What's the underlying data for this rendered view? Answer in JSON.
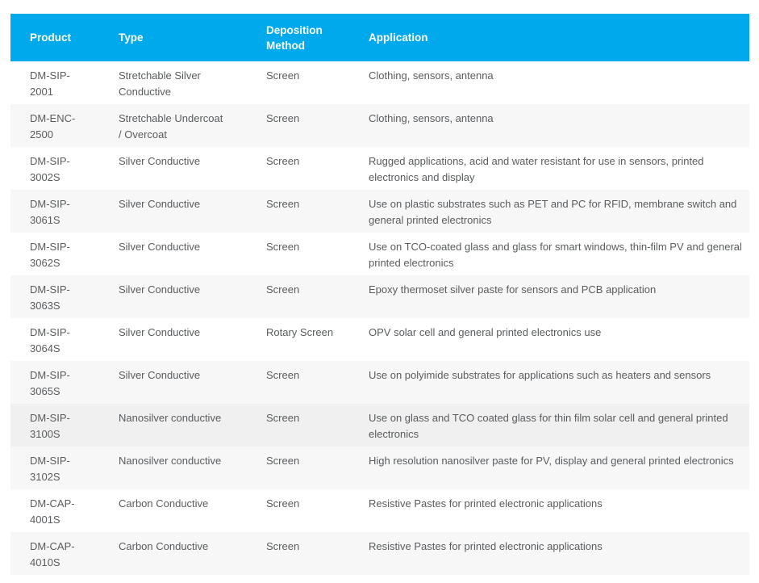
{
  "table": {
    "colors": {
      "header_bg": "#00a9ec",
      "header_text": "#ffffff",
      "row_bg": "#ffffff",
      "row_alt_bg": "#f7f7f8",
      "row_highlight_bg": "#f0f0f1",
      "body_text": "#595c5e"
    },
    "columns": [
      {
        "key": "product",
        "label": "Product"
      },
      {
        "key": "type",
        "label": "Type"
      },
      {
        "key": "deposition",
        "label": "Deposition Method"
      },
      {
        "key": "application",
        "label": "Application"
      }
    ],
    "rows": [
      {
        "product": "DM-SIP-2001",
        "type": "Stretchable Silver Conductive",
        "deposition": "Screen",
        "application": "Clothing, sensors, antenna",
        "highlighted": false
      },
      {
        "product": "DM-ENC-2500",
        "type": "Stretchable Undercoat / Overcoat",
        "deposition": "Screen",
        "application": "Clothing, sensors, antenna",
        "highlighted": false
      },
      {
        "product": "DM-SIP-3002S",
        "type": "Silver Conductive",
        "deposition": "Screen",
        "application": "Rugged applications, acid and water resistant for use in sensors, printed electronics and display",
        "highlighted": false
      },
      {
        "product": "DM-SIP-3061S",
        "type": "Silver Conductive",
        "deposition": "Screen",
        "application": "Use on plastic substrates such as PET and PC for RFID, membrane switch and general printed electronics",
        "highlighted": false
      },
      {
        "product": "DM-SIP-3062S",
        "type": "Silver Conductive",
        "deposition": "Screen",
        "application": "Use on TCO-coated glass and glass for smart windows, thin-film PV and general printed electronics",
        "highlighted": false
      },
      {
        "product": "DM-SIP-3063S",
        "type": "Silver Conductive",
        "deposition": "Screen",
        "application": "Epoxy thermoset silver paste for sensors and PCB application",
        "highlighted": false
      },
      {
        "product": "DM-SIP-3064S",
        "type": "Silver Conductive",
        "deposition": "Rotary Screen",
        "application": "OPV solar cell and general printed electronics use",
        "highlighted": false
      },
      {
        "product": "DM-SIP-3065S",
        "type": "Silver Conductive",
        "deposition": "Screen",
        "application": "Use on polyimide substrates for applications such as heaters and sensors",
        "highlighted": false
      },
      {
        "product": "DM-SIP-3100S",
        "type": "Nanosilver conductive",
        "deposition": "Screen",
        "application": "Use on glass and TCO coated glass for thin film solar cell and general printed electronics",
        "highlighted": true
      },
      {
        "product": "DM-SIP-3102S",
        "type": "Nanosilver conductive",
        "deposition": "Screen",
        "application": "High resolution nanosilver paste for PV, display and general printed electronics",
        "highlighted": false
      },
      {
        "product": "DM-CAP-4001S",
        "type": "Carbon Conductive",
        "deposition": "Screen",
        "application": "Resistive Pastes for printed electronic applications",
        "highlighted": false
      },
      {
        "product": "DM-CAP-4010S",
        "type": "Carbon Conductive",
        "deposition": "Screen",
        "application": "Resistive Pastes for printed electronic applications",
        "highlighted": false
      }
    ]
  }
}
